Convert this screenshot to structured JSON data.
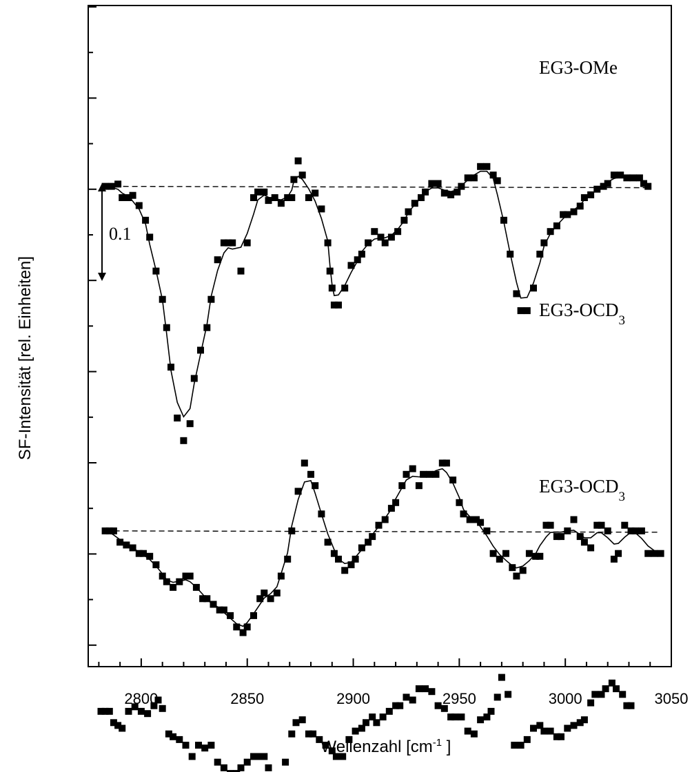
{
  "chart_data": {
    "type": "scatter",
    "xlabel": "Wellenzahl [cm",
    "xlabel_sup": "-1",
    "xlabel_end": " ]",
    "ylabel": "SF-Intensität [rel. Einheiten]",
    "xlim": [
      2775,
      3050
    ],
    "ylim": [
      -0.85,
      0.32
    ],
    "x_ticks": [
      2800,
      2850,
      2900,
      2950,
      3000,
      3050
    ],
    "scale_bar": {
      "label": "0.1",
      "length": 0.1
    },
    "series": [
      {
        "name": "EG3-OMe",
        "name_main": "EG3-OMe",
        "name_sub": "",
        "points": [
          [
            2783,
            0.0
          ],
          [
            2786,
            0.0
          ],
          [
            2789,
            0.004
          ],
          [
            2791,
            -0.02
          ],
          [
            2794,
            -0.02
          ],
          [
            2796,
            -0.016
          ],
          [
            2799,
            -0.034
          ],
          [
            2802,
            -0.06
          ],
          [
            2804,
            -0.09
          ],
          [
            2807,
            -0.15
          ],
          [
            2810,
            -0.2
          ],
          [
            2812,
            -0.25
          ],
          [
            2814,
            -0.32
          ],
          [
            2817,
            -0.41
          ],
          [
            2820,
            -0.45
          ],
          [
            2823,
            -0.42
          ],
          [
            2825,
            -0.34
          ],
          [
            2828,
            -0.29
          ],
          [
            2831,
            -0.25
          ],
          [
            2833,
            -0.2
          ],
          [
            2836,
            -0.13
          ],
          [
            2839,
            -0.1
          ],
          [
            2841,
            -0.1
          ],
          [
            2843,
            -0.1
          ],
          [
            2847,
            -0.15
          ],
          [
            2850,
            -0.1
          ],
          [
            2853,
            -0.02
          ],
          [
            2855,
            -0.01
          ],
          [
            2858,
            -0.01
          ],
          [
            2860,
            -0.025
          ],
          [
            2863,
            -0.02
          ],
          [
            2866,
            -0.03
          ],
          [
            2869,
            -0.02
          ],
          [
            2871,
            -0.02
          ],
          [
            2872,
            0.012
          ],
          [
            2874,
            0.045
          ],
          [
            2876,
            0.02
          ],
          [
            2879,
            -0.02
          ],
          [
            2882,
            -0.012
          ],
          [
            2885,
            -0.04
          ],
          [
            2888,
            -0.1
          ],
          [
            2889,
            -0.15
          ],
          [
            2890,
            -0.18
          ],
          [
            2891,
            -0.21
          ],
          [
            2893,
            -0.21
          ],
          [
            2896,
            -0.18
          ],
          [
            2899,
            -0.14
          ],
          [
            2902,
            -0.13
          ],
          [
            2904,
            -0.12
          ],
          [
            2907,
            -0.1
          ],
          [
            2910,
            -0.08
          ],
          [
            2913,
            -0.09
          ],
          [
            2915,
            -0.1
          ],
          [
            2918,
            -0.09
          ],
          [
            2921,
            -0.08
          ],
          [
            2924,
            -0.06
          ],
          [
            2926,
            -0.045
          ],
          [
            2929,
            -0.03
          ],
          [
            2932,
            -0.02
          ],
          [
            2934,
            -0.01
          ],
          [
            2937,
            0.005
          ],
          [
            2940,
            0.005
          ],
          [
            2943,
            -0.012
          ],
          [
            2946,
            -0.015
          ],
          [
            2949,
            -0.01
          ],
          [
            2951,
            0.0
          ],
          [
            2954,
            0.015
          ],
          [
            2957,
            0.015
          ],
          [
            2960,
            0.035
          ],
          [
            2963,
            0.035
          ],
          [
            2966,
            0.02
          ],
          [
            2968,
            0.01
          ],
          [
            2971,
            -0.06
          ],
          [
            2974,
            -0.12
          ],
          [
            2977,
            -0.19
          ],
          [
            2979,
            -0.22
          ],
          [
            2982,
            -0.22
          ],
          [
            2985,
            -0.18
          ],
          [
            2988,
            -0.12
          ],
          [
            2990,
            -0.1
          ],
          [
            2993,
            -0.08
          ],
          [
            2996,
            -0.07
          ],
          [
            2999,
            -0.05
          ],
          [
            3001,
            -0.05
          ],
          [
            3004,
            -0.045
          ],
          [
            3007,
            -0.035
          ],
          [
            3009,
            -0.02
          ],
          [
            3012,
            -0.015
          ],
          [
            3015,
            -0.005
          ],
          [
            3018,
            0.0
          ],
          [
            3020,
            0.005
          ],
          [
            3023,
            0.02
          ],
          [
            3026,
            0.02
          ],
          [
            3029,
            0.015
          ],
          [
            3032,
            0.015
          ],
          [
            3035,
            0.015
          ],
          [
            3037,
            0.005
          ],
          [
            3039,
            0.0
          ]
        ]
      },
      {
        "name": "EG3-OCD3",
        "name_main": "EG3-OCD",
        "name_sub": "3",
        "points": [
          [
            2783,
            0.0
          ],
          [
            2785,
            0.0
          ],
          [
            2787,
            0.0
          ],
          [
            2790,
            -0.02
          ],
          [
            2793,
            -0.025
          ],
          [
            2796,
            -0.03
          ],
          [
            2799,
            -0.04
          ],
          [
            2801,
            -0.04
          ],
          [
            2804,
            -0.045
          ],
          [
            2807,
            -0.06
          ],
          [
            2810,
            -0.08
          ],
          [
            2812,
            -0.09
          ],
          [
            2815,
            -0.1
          ],
          [
            2818,
            -0.09
          ],
          [
            2821,
            -0.08
          ],
          [
            2823,
            -0.08
          ],
          [
            2826,
            -0.1
          ],
          [
            2829,
            -0.12
          ],
          [
            2831,
            -0.12
          ],
          [
            2834,
            -0.13
          ],
          [
            2837,
            -0.14
          ],
          [
            2839,
            -0.14
          ],
          [
            2842,
            -0.15
          ],
          [
            2845,
            -0.17
          ],
          [
            2848,
            -0.18
          ],
          [
            2850,
            -0.17
          ],
          [
            2853,
            -0.15
          ],
          [
            2856,
            -0.12
          ],
          [
            2858,
            -0.11
          ],
          [
            2861,
            -0.12
          ],
          [
            2864,
            -0.11
          ],
          [
            2866,
            -0.08
          ],
          [
            2869,
            -0.05
          ],
          [
            2871,
            0.0
          ],
          [
            2874,
            0.07
          ],
          [
            2877,
            0.12
          ],
          [
            2880,
            0.1
          ],
          [
            2882,
            0.08
          ],
          [
            2885,
            0.03
          ],
          [
            2888,
            -0.02
          ],
          [
            2891,
            -0.04
          ],
          [
            2893,
            -0.05
          ],
          [
            2896,
            -0.07
          ],
          [
            2899,
            -0.06
          ],
          [
            2901,
            -0.05
          ],
          [
            2904,
            -0.03
          ],
          [
            2907,
            -0.02
          ],
          [
            2909,
            -0.01
          ],
          [
            2912,
            0.01
          ],
          [
            2915,
            0.02
          ],
          [
            2918,
            0.04
          ],
          [
            2920,
            0.05
          ],
          [
            2923,
            0.08
          ],
          [
            2925,
            0.1
          ],
          [
            2928,
            0.11
          ],
          [
            2931,
            0.08
          ],
          [
            2933,
            0.1
          ],
          [
            2936,
            0.1
          ],
          [
            2939,
            0.1
          ],
          [
            2942,
            0.12
          ],
          [
            2944,
            0.12
          ],
          [
            2947,
            0.09
          ],
          [
            2950,
            0.05
          ],
          [
            2952,
            0.03
          ],
          [
            2955,
            0.02
          ],
          [
            2958,
            0.02
          ],
          [
            2960,
            0.015
          ],
          [
            2963,
            0.0
          ],
          [
            2966,
            -0.04
          ],
          [
            2969,
            -0.05
          ],
          [
            2972,
            -0.04
          ],
          [
            2975,
            -0.065
          ],
          [
            2977,
            -0.08
          ],
          [
            2980,
            -0.07
          ],
          [
            2983,
            -0.04
          ],
          [
            2986,
            -0.045
          ],
          [
            2988,
            -0.045
          ],
          [
            2991,
            0.01
          ],
          [
            2993,
            0.01
          ],
          [
            2996,
            -0.01
          ],
          [
            2998,
            -0.01
          ],
          [
            3001,
            0.0
          ],
          [
            3004,
            0.02
          ],
          [
            3007,
            -0.01
          ],
          [
            3009,
            -0.02
          ],
          [
            3012,
            -0.03
          ],
          [
            3015,
            0.01
          ],
          [
            3017,
            0.01
          ],
          [
            3020,
            0.0
          ],
          [
            3023,
            -0.05
          ],
          [
            3025,
            -0.04
          ],
          [
            3028,
            0.01
          ],
          [
            3031,
            0.0
          ],
          [
            3033,
            0.0
          ],
          [
            3036,
            0.0
          ],
          [
            3039,
            -0.04
          ],
          [
            3042,
            -0.04
          ],
          [
            3045,
            -0.04
          ]
        ]
      },
      {
        "name": "EG3-OCD3",
        "name_main": "EG3-OCD",
        "name_sub": "3",
        "points": [
          [
            2781,
            0.0
          ],
          [
            2783,
            0.0
          ],
          [
            2785,
            0.0
          ],
          [
            2787,
            -0.02
          ],
          [
            2789,
            -0.025
          ],
          [
            2791,
            -0.03
          ],
          [
            2794,
            -0.0
          ],
          [
            2797,
            0.008
          ],
          [
            2800,
            0.0
          ],
          [
            2803,
            -0.004
          ],
          [
            2806,
            0.01
          ],
          [
            2808,
            0.02
          ],
          [
            2810,
            0.005
          ],
          [
            2813,
            -0.04
          ],
          [
            2815,
            -0.045
          ],
          [
            2818,
            -0.05
          ],
          [
            2821,
            -0.06
          ],
          [
            2824,
            -0.08
          ],
          [
            2827,
            -0.06
          ],
          [
            2830,
            -0.065
          ],
          [
            2833,
            -0.06
          ],
          [
            2836,
            -0.09
          ],
          [
            2839,
            -0.1
          ],
          [
            2842,
            -0.11
          ],
          [
            2845,
            -0.11
          ],
          [
            2847,
            -0.1
          ],
          [
            2850,
            -0.09
          ],
          [
            2853,
            -0.08
          ],
          [
            2855,
            -0.08
          ],
          [
            2858,
            -0.08
          ],
          [
            2860,
            -0.1
          ],
          [
            2863,
            -0.12
          ],
          [
            2866,
            -0.12
          ],
          [
            2868,
            -0.09
          ],
          [
            2871,
            -0.04
          ],
          [
            2873,
            -0.02
          ],
          [
            2876,
            -0.015
          ],
          [
            2879,
            -0.04
          ],
          [
            2881,
            -0.04
          ],
          [
            2884,
            -0.05
          ],
          [
            2887,
            -0.06
          ],
          [
            2890,
            -0.07
          ],
          [
            2892,
            -0.08
          ],
          [
            2895,
            -0.08
          ],
          [
            2898,
            -0.05
          ],
          [
            2901,
            -0.035
          ],
          [
            2904,
            -0.03
          ],
          [
            2906,
            -0.02
          ],
          [
            2909,
            -0.01
          ],
          [
            2911,
            -0.02
          ],
          [
            2914,
            -0.01
          ],
          [
            2917,
            0.0
          ],
          [
            2920,
            0.01
          ],
          [
            2922,
            0.01
          ],
          [
            2925,
            0.025
          ],
          [
            2928,
            0.02
          ],
          [
            2931,
            0.04
          ],
          [
            2934,
            0.04
          ],
          [
            2937,
            0.035
          ],
          [
            2940,
            0.01
          ],
          [
            2943,
            0.005
          ],
          [
            2946,
            -0.01
          ],
          [
            2948,
            -0.01
          ],
          [
            2951,
            -0.01
          ],
          [
            2954,
            -0.035
          ],
          [
            2957,
            -0.04
          ],
          [
            2960,
            -0.015
          ],
          [
            2963,
            -0.01
          ],
          [
            2965,
            0.0
          ],
          [
            2968,
            0.025
          ],
          [
            2970,
            0.06
          ],
          [
            2973,
            0.03
          ],
          [
            2976,
            -0.06
          ],
          [
            2979,
            -0.06
          ],
          [
            2982,
            -0.05
          ],
          [
            2985,
            -0.03
          ],
          [
            2988,
            -0.025
          ],
          [
            2990,
            -0.035
          ],
          [
            2993,
            -0.035
          ],
          [
            2996,
            -0.045
          ],
          [
            2998,
            -0.045
          ],
          [
            3001,
            -0.03
          ],
          [
            3004,
            -0.025
          ],
          [
            3007,
            -0.02
          ],
          [
            3009,
            -0.015
          ],
          [
            3012,
            0.015
          ],
          [
            3014,
            0.03
          ],
          [
            3017,
            0.03
          ],
          [
            3019,
            0.04
          ],
          [
            3022,
            0.05
          ],
          [
            3024,
            0.04
          ],
          [
            3027,
            0.03
          ],
          [
            3029,
            0.01
          ],
          [
            3031,
            0.01
          ]
        ]
      }
    ]
  }
}
